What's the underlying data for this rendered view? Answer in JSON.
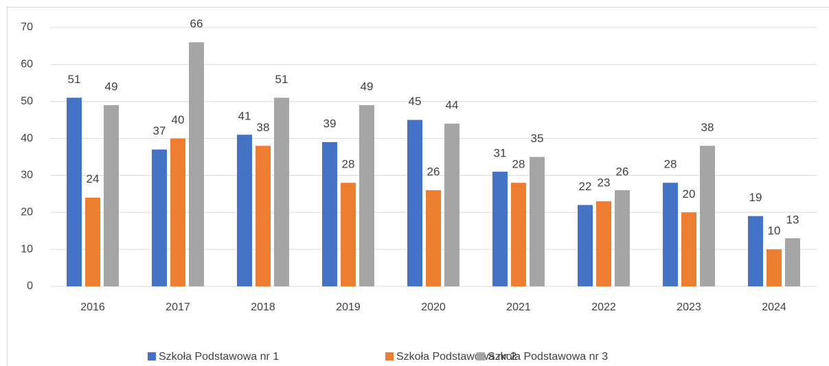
{
  "chart_data": {
    "type": "bar",
    "categories": [
      "2016",
      "2017",
      "2018",
      "2019",
      "2020",
      "2021",
      "2022",
      "2023",
      "2024"
    ],
    "series": [
      {
        "name": "Szkoła Podstawowa nr 1",
        "color": "#4472c4",
        "values": [
          51,
          37,
          41,
          39,
          45,
          31,
          22,
          28,
          19
        ]
      },
      {
        "name": "Szkoła Podstawowa nr 2",
        "color": "#ed7d31",
        "values": [
          24,
          40,
          38,
          28,
          26,
          28,
          23,
          20,
          10
        ]
      },
      {
        "name": "Szkoła Podstawowa nr 3",
        "color": "#a5a5a5",
        "values": [
          49,
          66,
          51,
          49,
          44,
          35,
          26,
          38,
          13
        ]
      }
    ],
    "ylim": [
      0,
      70
    ],
    "yticks": [
      0,
      10,
      20,
      30,
      40,
      50,
      60,
      70
    ],
    "grid": true,
    "legend": "bottom"
  }
}
